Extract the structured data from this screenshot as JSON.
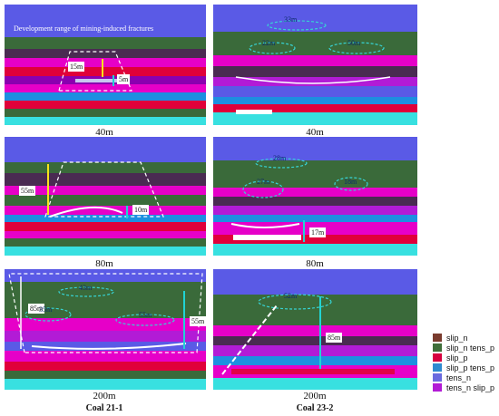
{
  "figure": {
    "captions": [
      "40m",
      "40m",
      "80m",
      "80m",
      "200m",
      "200m"
    ],
    "columns": [
      "Coal 21-1",
      "Coal 23-2"
    ],
    "annotation": "Development range of mining-induced fractures"
  },
  "panels": {
    "p1": {
      "heights": [
        "15m",
        "5m"
      ]
    },
    "p2": {
      "zones": [
        "33m",
        "22m",
        "50m"
      ]
    },
    "p3": {
      "heights": [
        "55m",
        "10m"
      ]
    },
    "p4": {
      "zones": [
        "28m",
        "27m",
        "18m"
      ],
      "heights": [
        "17m"
      ]
    },
    "p5": {
      "zones": [
        "43m",
        "35m",
        "55m"
      ],
      "heights": [
        "85m",
        "55m"
      ]
    },
    "p6": {
      "zones": [
        "52m"
      ],
      "heights": [
        "85m"
      ]
    }
  },
  "legend": [
    {
      "label": "slip_n",
      "color": "#7a3b2e"
    },
    {
      "label": "slip_n tens_p",
      "color": "#3f6e3a"
    },
    {
      "label": "slip_p",
      "color": "#d7003f"
    },
    {
      "label": "slip_p tens_p",
      "color": "#2f8ad0"
    },
    {
      "label": "tens_n",
      "color": "#6a6adf"
    },
    {
      "label": "tens_n slip_p",
      "color": "#b21bd6"
    }
  ],
  "colors": {
    "sky": "#5a5ae6",
    "green": "#3a6a3a",
    "magenta": "#e600c8",
    "red": "#e0003a",
    "blue": "#1d8fe0",
    "cyan": "#38e0e0",
    "darkgreen": "#4a2b52",
    "zone": "#37d4d4",
    "arrow_yellow": "#f7e21b",
    "arrow_cyan": "#21d3d3"
  }
}
